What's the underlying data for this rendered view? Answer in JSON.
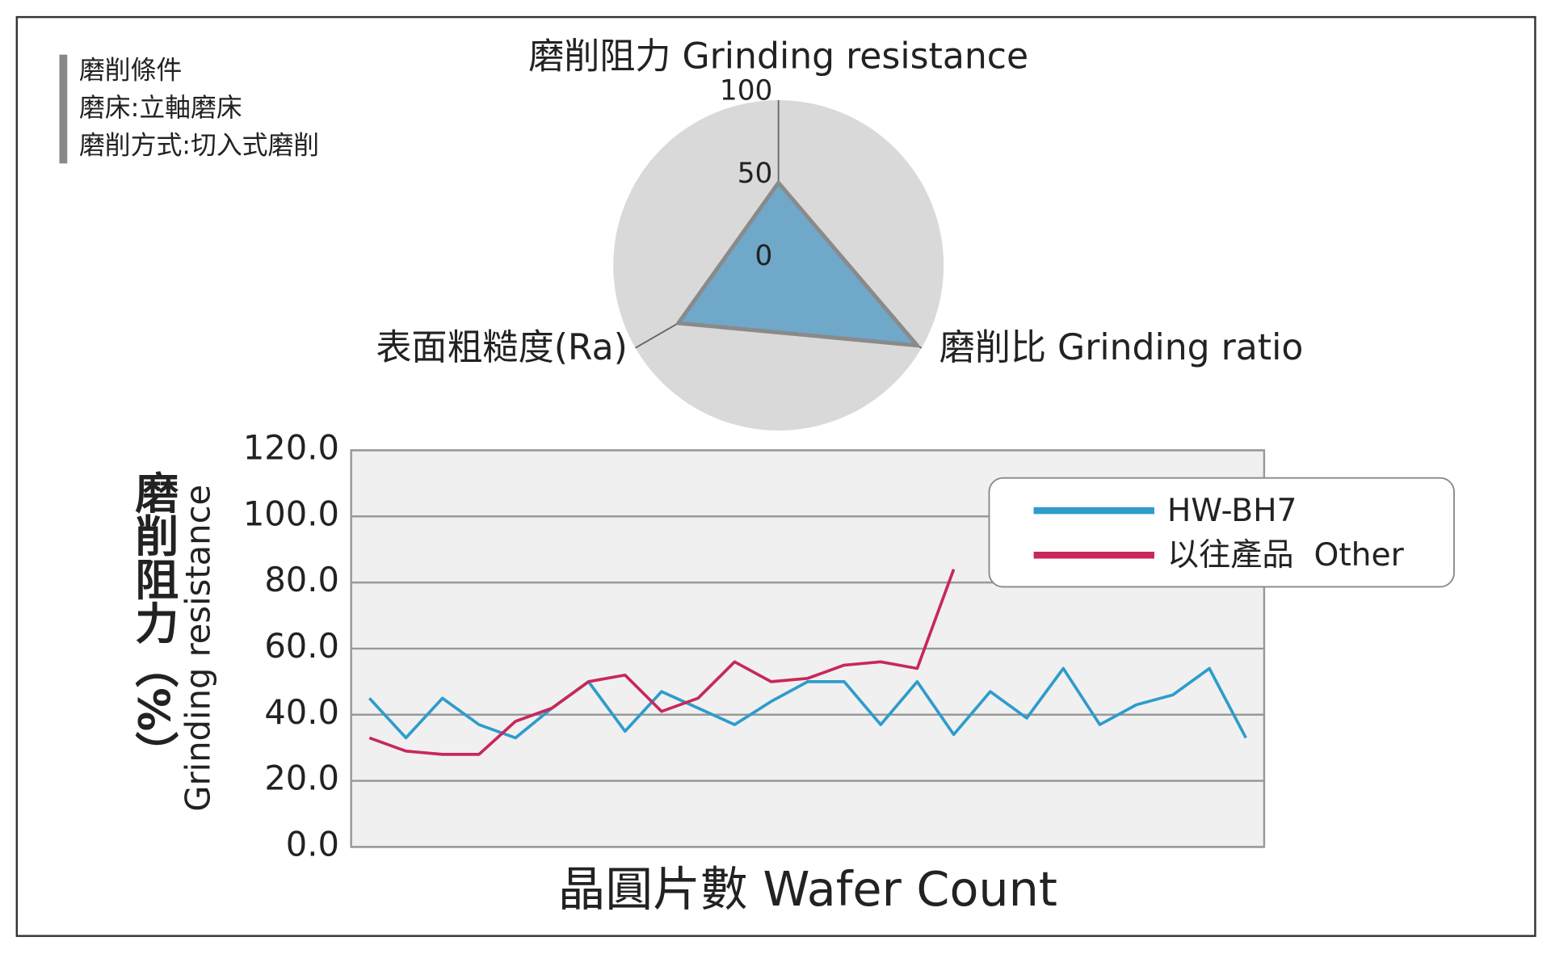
{
  "notes": [
    "磨削條件",
    "磨床:立軸磨床",
    "磨削方式:切入式磨削"
  ],
  "chart_data": [
    {
      "type": "radar",
      "title": "磨削阻力 Grinding resistance",
      "axes": [
        "磨削阻力 Grinding resistance",
        "磨削比 Grinding ratio",
        "表面粗糙度(Ra)"
      ],
      "values": [
        50,
        97,
        70
      ],
      "color": "#6fa8c8",
      "rlim": [
        0,
        100
      ],
      "rticks": [
        0,
        50,
        100
      ]
    },
    {
      "type": "line",
      "xlabel": "晶圓片數 Wafer Count",
      "ylabel": "磨削阻力（%）",
      "ylabel2": "Grinding resistance",
      "categories": [
        null,
        null,
        null,
        null,
        null,
        null,
        null,
        null,
        null,
        null,
        null,
        null,
        null,
        null,
        null,
        null,
        null,
        null,
        null,
        null,
        null,
        null,
        null,
        null,
        null
      ],
      "series": [
        {
          "name": "HW-BH7",
          "color": "#2e9ccc",
          "values": [
            45,
            33,
            45,
            37,
            33,
            42,
            50,
            35,
            47,
            42,
            37,
            44,
            50,
            50,
            37,
            50,
            34,
            47,
            39,
            54,
            37,
            43,
            46,
            54,
            33
          ]
        },
        {
          "name": "以往產品  Other",
          "color": "#c8285a",
          "values": [
            33,
            29,
            28,
            28,
            38,
            42,
            50,
            52,
            41,
            45,
            56,
            50,
            51,
            55,
            56,
            54,
            84,
            null,
            null,
            null,
            null,
            null,
            null,
            null,
            null
          ]
        }
      ],
      "ylim": [
        0,
        120
      ],
      "yticks": [
        {
          "value": 0,
          "label": "0.0"
        },
        {
          "value": 20,
          "label": "20.0"
        },
        {
          "value": 40,
          "label": "40.0"
        },
        {
          "value": 60,
          "label": "60.0"
        },
        {
          "value": 80,
          "label": "80.0"
        },
        {
          "value": 100,
          "label": "100.0"
        },
        {
          "value": 120,
          "label": "120.0"
        }
      ],
      "grid": true,
      "legend": "upper right"
    }
  ]
}
